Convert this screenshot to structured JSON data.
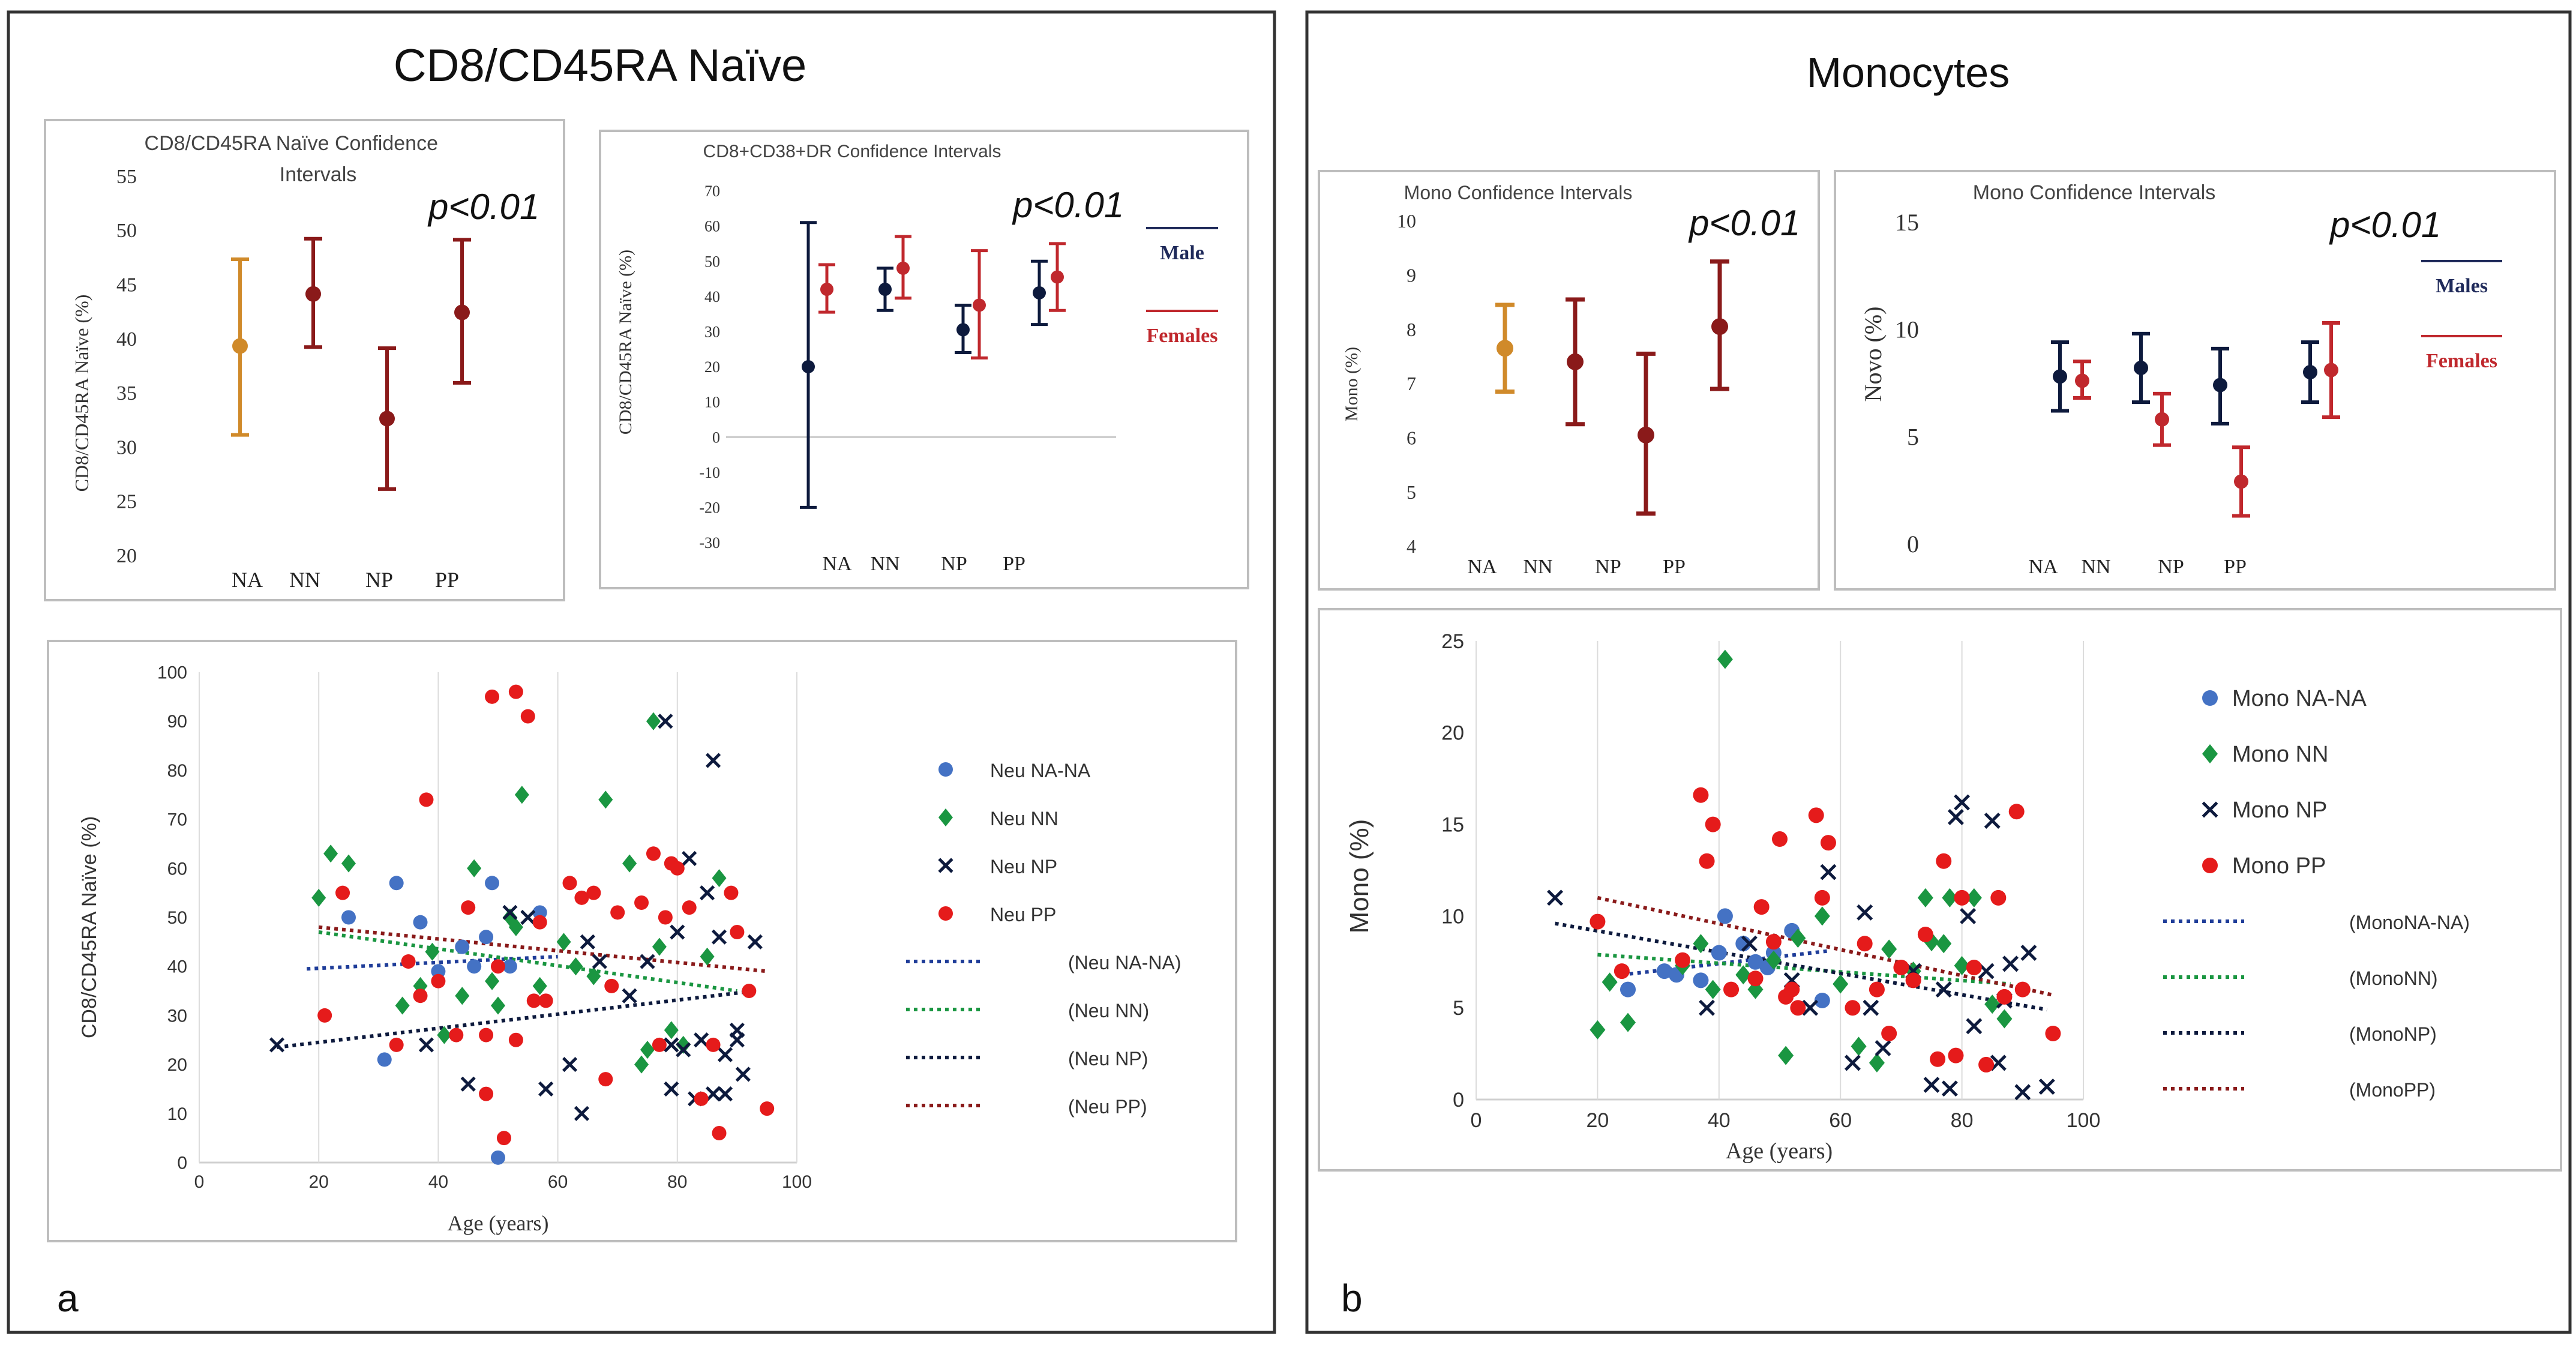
{
  "panels": {
    "a": {
      "title": "CD8/CD45RA Naïve",
      "label": "a"
    },
    "b": {
      "title": "Monocytes",
      "label": "b"
    }
  },
  "chart_data": [
    {
      "id": "a_ci",
      "type": "errorbar",
      "title": "CD8/CD45RA Naïve Confidence Intervals",
      "ylabel": "CD8/CD45RA Naïve (%)",
      "annotation": "p<0.01",
      "ylim": [
        20,
        55
      ],
      "yticks": [
        20,
        25,
        30,
        35,
        40,
        45,
        50,
        55
      ],
      "categories": [
        "NA",
        "NN",
        "NP",
        "PP"
      ],
      "points": [
        {
          "cat": "NA",
          "mean": 39.3,
          "low": 31.1,
          "high": 47.3,
          "color": "#d08a2a"
        },
        {
          "cat": "NN",
          "mean": 44.1,
          "low": 39.2,
          "high": 49.2,
          "color": "#8a1a1a"
        },
        {
          "cat": "NP",
          "mean": 32.6,
          "low": 26.1,
          "high": 39.1,
          "color": "#8a1a1a"
        },
        {
          "cat": "PP",
          "mean": 42.4,
          "low": 35.9,
          "high": 49.1,
          "color": "#8a1a1a"
        }
      ]
    },
    {
      "id": "a_cd38",
      "type": "errorbar",
      "title": "CD8+CD38+DR Confidence Intervals",
      "ylabel": "CD8/CD45RA Naïve (%)",
      "annotation": "p<0.01",
      "ylim": [
        -30,
        70
      ],
      "yticks": [
        -30,
        -20,
        -10,
        0,
        10,
        20,
        30,
        40,
        50,
        60,
        70
      ],
      "categories": [
        "NA",
        "NN",
        "NP",
        "PP"
      ],
      "legend": [
        {
          "name": "Male",
          "color": "#1f2a5a"
        },
        {
          "name": "Females",
          "color": "#c0282d"
        }
      ],
      "series": [
        {
          "name": "Male",
          "color": "#0d1a3d",
          "points": [
            {
              "cat": "NA",
              "mean": 20,
              "low": -20,
              "high": 61
            },
            {
              "cat": "NN",
              "mean": 42,
              "low": 36,
              "high": 48
            },
            {
              "cat": "NP",
              "mean": 30.5,
              "low": 24,
              "high": 37.5
            },
            {
              "cat": "PP",
              "mean": 41,
              "low": 32,
              "high": 50
            }
          ]
        },
        {
          "name": "Females",
          "color": "#c0282d",
          "points": [
            {
              "cat": "NA",
              "mean": 42,
              "low": 35.5,
              "high": 49
            },
            {
              "cat": "NN",
              "mean": 48,
              "low": 39.5,
              "high": 57
            },
            {
              "cat": "NP",
              "mean": 37.5,
              "low": 22.5,
              "high": 53
            },
            {
              "cat": "PP",
              "mean": 45.5,
              "low": 36,
              "high": 55
            }
          ]
        }
      ]
    },
    {
      "id": "a_scatter",
      "type": "scatter",
      "ylabel": "CD8/CD45RA Naïve (%)",
      "xlabel": "Age (years)",
      "xlim": [
        0,
        100
      ],
      "ylim": [
        0,
        100
      ],
      "xticks": [
        0,
        20,
        40,
        60,
        80,
        100
      ],
      "yticks": [
        0,
        10,
        20,
        30,
        40,
        50,
        60,
        70,
        80,
        90,
        100
      ],
      "legend": [
        "Neu NA-NA",
        "Neu NN",
        "Neu NP",
        "Neu PP",
        "(Neu NA-NA)",
        "(Neu NN)",
        "(Neu NP)",
        "(Neu PP)"
      ],
      "series": [
        {
          "name": "Neu NA-NA",
          "marker": "circle",
          "color": "#4472c4",
          "x": [
            25,
            31,
            33,
            37,
            40,
            44,
            46,
            48,
            49,
            52,
            57,
            50
          ],
          "y": [
            50,
            21,
            57,
            49,
            39,
            44,
            40,
            46,
            57,
            40,
            51,
            1
          ]
        },
        {
          "name": "Neu NN",
          "marker": "diamond",
          "color": "#1a9641",
          "x": [
            20,
            22,
            25,
            34,
            37,
            39,
            41,
            44,
            46,
            49,
            50,
            52,
            53,
            54,
            57,
            61,
            63,
            66,
            68,
            72,
            74,
            75,
            76,
            77,
            79,
            81,
            85,
            87
          ],
          "y": [
            54,
            63,
            61,
            32,
            36,
            43,
            26,
            34,
            60,
            37,
            32,
            50,
            48,
            75,
            36,
            45,
            40,
            38,
            74,
            61,
            20,
            23,
            90,
            44,
            27,
            24,
            42,
            58
          ]
        },
        {
          "name": "Neu NP",
          "marker": "x",
          "color": "#0d1a3d",
          "x": [
            13,
            38,
            45,
            52,
            55,
            58,
            62,
            64,
            65,
            67,
            72,
            75,
            78,
            79,
            80,
            82,
            84,
            85,
            86,
            87,
            88,
            90,
            91,
            93
          ],
          "y": [
            24,
            24,
            16,
            51,
            50,
            15,
            20,
            10,
            45,
            41,
            34,
            41,
            90,
            15,
            47,
            62,
            25,
            55,
            82,
            46,
            14,
            27,
            18,
            45
          ],
          "extra_x": [
            79,
            81,
            83,
            86,
            88,
            90
          ],
          "extra_y": [
            24,
            23,
            13,
            14,
            22,
            25
          ]
        },
        {
          "name": "Neu PP",
          "marker": "circle",
          "color": "#e51b1b",
          "x": [
            21,
            24,
            33,
            35,
            37,
            38,
            40,
            43,
            45,
            48,
            49,
            51,
            53,
            55,
            57,
            58,
            62,
            64,
            66,
            68,
            69,
            70,
            74,
            76,
            77,
            78,
            79,
            80,
            82,
            84,
            86,
            87,
            89,
            90,
            92,
            95,
            48,
            50,
            53,
            56
          ],
          "y": [
            30,
            55,
            24,
            41,
            34,
            74,
            37,
            26,
            52,
            26,
            95,
            5,
            96,
            91,
            49,
            33,
            57,
            54,
            55,
            17,
            36,
            51,
            53,
            63,
            24,
            50,
            61,
            60,
            52,
            13,
            24,
            6,
            55,
            47,
            35,
            11,
            14,
            40,
            25,
            33
          ]
        }
      ],
      "trendlines": [
        {
          "name": "(Neu NA-NA)",
          "color": "#1f3d99",
          "x": [
            18,
            60
          ],
          "y": [
            39.5,
            42
          ]
        },
        {
          "name": "(Neu NN)",
          "color": "#1a9641",
          "x": [
            20,
            90
          ],
          "y": [
            47,
            35
          ]
        },
        {
          "name": "(Neu NP)",
          "color": "#0d1a3d",
          "x": [
            13,
            93
          ],
          "y": [
            23.5,
            35
          ]
        },
        {
          "name": "(Neu PP)",
          "color": "#8a1a1a",
          "x": [
            20,
            95
          ],
          "y": [
            48,
            39
          ]
        }
      ]
    },
    {
      "id": "b_ci",
      "type": "errorbar",
      "title": "Mono Confidence Intervals",
      "ylabel": "Mono (%)",
      "annotation": "p<0.01",
      "ylim": [
        4,
        10
      ],
      "yticks": [
        4,
        5,
        6,
        7,
        8,
        9,
        10
      ],
      "categories": [
        "NA",
        "NN",
        "NP",
        "PP"
      ],
      "points": [
        {
          "cat": "NA",
          "mean": 7.65,
          "low": 6.85,
          "high": 8.45,
          "color": "#d08a2a"
        },
        {
          "cat": "NN",
          "mean": 7.4,
          "low": 6.25,
          "high": 8.55,
          "color": "#8a1a1a"
        },
        {
          "cat": "NP",
          "mean": 6.05,
          "low": 4.6,
          "high": 7.55,
          "color": "#8a1a1a"
        },
        {
          "cat": "PP",
          "mean": 8.05,
          "low": 6.9,
          "high": 9.25,
          "color": "#8a1a1a"
        }
      ]
    },
    {
      "id": "b_novo",
      "type": "errorbar",
      "title": "Mono Confidence Intervals",
      "ylabel": "Novo (%)",
      "annotation": "p<0.01",
      "ylim": [
        0,
        15
      ],
      "yticks": [
        0,
        5,
        10,
        15
      ],
      "categories": [
        "NA",
        "NN",
        "NP",
        "PP"
      ],
      "legend": [
        {
          "name": "Males",
          "color": "#1f2a5a"
        },
        {
          "name": "Females",
          "color": "#c0282d"
        }
      ],
      "series": [
        {
          "name": "Males",
          "color": "#0d1a3d",
          "points": [
            {
              "cat": "NA",
              "mean": 7.8,
              "low": 6.2,
              "high": 9.4
            },
            {
              "cat": "NN",
              "mean": 8.2,
              "low": 6.6,
              "high": 9.8
            },
            {
              "cat": "NP",
              "mean": 7.4,
              "low": 5.6,
              "high": 9.1
            },
            {
              "cat": "PP",
              "mean": 8.0,
              "low": 6.6,
              "high": 9.4
            }
          ]
        },
        {
          "name": "Females",
          "color": "#c0282d",
          "points": [
            {
              "cat": "NA",
              "mean": 7.6,
              "low": 6.8,
              "high": 8.5
            },
            {
              "cat": "NN",
              "mean": 5.8,
              "low": 4.6,
              "high": 7.0
            },
            {
              "cat": "NP",
              "mean": 2.9,
              "low": 1.3,
              "high": 4.5
            },
            {
              "cat": "PP",
              "mean": 8.1,
              "low": 5.9,
              "high": 10.3
            }
          ]
        }
      ]
    },
    {
      "id": "b_scatter",
      "type": "scatter",
      "ylabel": "Mono (%)",
      "xlabel": "Age (years)",
      "xlim": [
        0,
        100
      ],
      "ylim": [
        0,
        25
      ],
      "xticks": [
        0,
        20,
        40,
        60,
        80,
        100
      ],
      "yticks": [
        0,
        5,
        10,
        15,
        20,
        25
      ],
      "legend": [
        "Mono NA-NA",
        "Mono NN",
        "Mono NP",
        "Mono PP",
        "(MonoNA-NA)",
        "(MonoNN)",
        "(MonoNP)",
        "(MonoPP)"
      ],
      "series": [
        {
          "name": "Mono NA-NA",
          "marker": "circle",
          "color": "#4472c4",
          "x": [
            25,
            31,
            33,
            37,
            40,
            41,
            44,
            46,
            48,
            49,
            52,
            57
          ],
          "y": [
            6,
            7,
            6.8,
            6.5,
            8,
            10,
            8.5,
            7.5,
            7.2,
            8,
            9.2,
            5.4
          ]
        },
        {
          "name": "Mono NN",
          "marker": "diamond",
          "color": "#1a9641",
          "x": [
            20,
            22,
            25,
            34,
            37,
            39,
            41,
            44,
            46,
            49,
            51,
            53,
            57,
            60,
            63,
            66,
            68,
            72,
            74,
            75,
            77,
            78,
            80,
            82,
            85,
            87
          ],
          "y": [
            3.8,
            6.4,
            4.2,
            7.3,
            8.5,
            6,
            24,
            6.8,
            6,
            7.6,
            2.4,
            8.8,
            10,
            6.3,
            2.9,
            2,
            8.2,
            7,
            11,
            8.6,
            8.5,
            11,
            7.3,
            11,
            5.2,
            4.4
          ]
        },
        {
          "name": "Mono NP",
          "marker": "x",
          "color": "#0d1a3d",
          "x": [
            13,
            38,
            45,
            52,
            55,
            58,
            62,
            64,
            65,
            67,
            72,
            75,
            77,
            78,
            79,
            80,
            81,
            82,
            84,
            85,
            86,
            87,
            88,
            90,
            91,
            94
          ],
          "y": [
            11,
            5,
            8.5,
            6.5,
            5,
            12.4,
            2,
            10.2,
            5,
            2.8,
            7,
            0.8,
            6,
            0.6,
            15.4,
            16.2,
            10,
            4,
            7,
            15.2,
            2,
            5.4,
            7.4,
            0.4,
            8,
            0.7
          ]
        },
        {
          "name": "Mono PP",
          "marker": "circle",
          "color": "#e51b1b",
          "x": [
            20,
            24,
            34,
            37,
            38,
            39,
            42,
            46,
            47,
            49,
            50,
            51,
            52,
            53,
            56,
            57,
            58,
            62,
            64,
            66,
            68,
            70,
            72,
            74,
            76,
            77,
            79,
            80,
            82,
            84,
            86,
            87,
            89,
            90,
            95
          ],
          "y": [
            9.7,
            7,
            7.6,
            16.6,
            13,
            15,
            6,
            6.6,
            10.5,
            8.6,
            14.2,
            5.6,
            6,
            5,
            15.5,
            11,
            14,
            5,
            8.5,
            6,
            3.6,
            7.2,
            6.5,
            9,
            2.2,
            13,
            2.4,
            11,
            7.2,
            1.9,
            11,
            5.6,
            15.7,
            6,
            3.6
          ]
        }
      ],
      "trendlines": [
        {
          "name": "(MonoNA-NA)",
          "color": "#1f3d99",
          "x": [
            24,
            58
          ],
          "y": [
            6.8,
            8.1
          ]
        },
        {
          "name": "(MonoNN)",
          "color": "#1a9641",
          "x": [
            20,
            88
          ],
          "y": [
            7.9,
            6.3
          ]
        },
        {
          "name": "(MonoNP)",
          "color": "#0d1a3d",
          "x": [
            13,
            94
          ],
          "y": [
            9.6,
            4.9
          ]
        },
        {
          "name": "(MonoPP)",
          "color": "#8a1a1a",
          "x": [
            20,
            95
          ],
          "y": [
            11,
            5.7
          ]
        }
      ]
    }
  ]
}
